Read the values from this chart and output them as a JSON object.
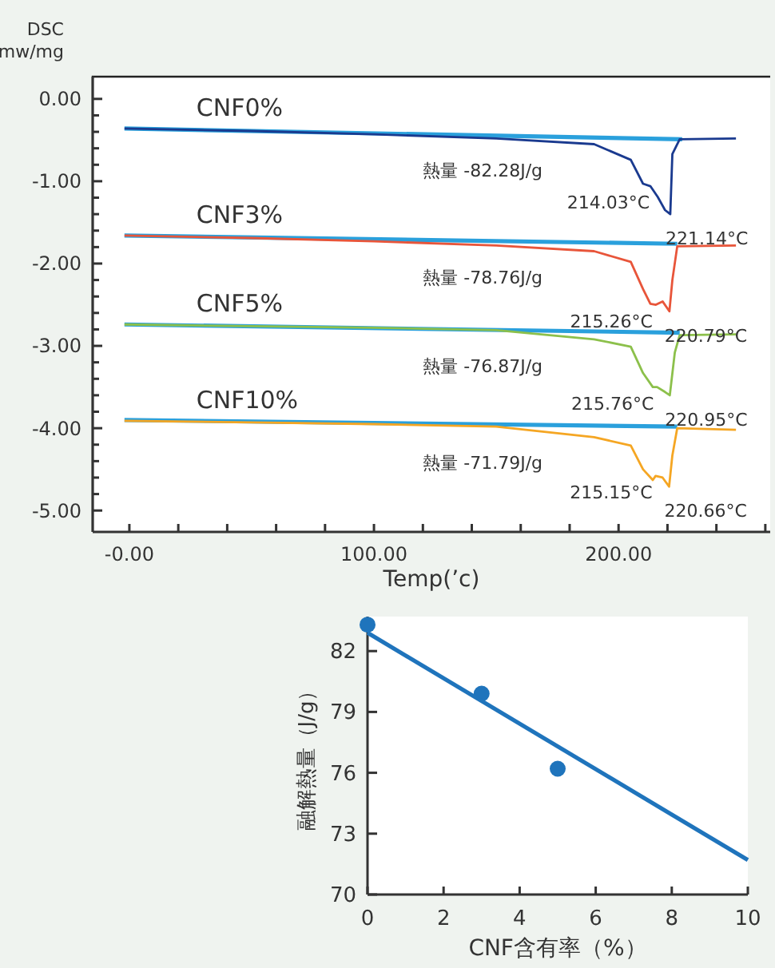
{
  "chart_data": [
    {
      "type": "line",
      "ylabel": "DSC mw/mg",
      "xlabel": "Temp(’c)",
      "xlim": [
        -15,
        262
      ],
      "ylim": [
        -5.26,
        0.27
      ],
      "xticks": [
        {
          "value": 0,
          "label": "-0.00"
        },
        {
          "value": 20,
          "label": null
        },
        {
          "value": 40,
          "label": null
        },
        {
          "value": 60,
          "label": null
        },
        {
          "value": 80,
          "label": null
        },
        {
          "value": 100,
          "label": "100.00"
        },
        {
          "value": 120,
          "label": null
        },
        {
          "value": 140,
          "label": null
        },
        {
          "value": 160,
          "label": null
        },
        {
          "value": 180,
          "label": null
        },
        {
          "value": 200,
          "label": "200.00"
        },
        {
          "value": 220,
          "label": null
        },
        {
          "value": 240,
          "label": null
        },
        {
          "value": 260,
          "label": null
        }
      ],
      "yticks": [
        {
          "value": 0,
          "label": "0.00"
        },
        {
          "value": -0.2,
          "label": null
        },
        {
          "value": -0.4,
          "label": null
        },
        {
          "value": -0.6,
          "label": null
        },
        {
          "value": -0.8,
          "label": null
        },
        {
          "value": -1,
          "label": "-1.00"
        },
        {
          "value": -1.2,
          "label": null
        },
        {
          "value": -1.4,
          "label": null
        },
        {
          "value": -1.6,
          "label": null
        },
        {
          "value": -1.8,
          "label": null
        },
        {
          "value": -2,
          "label": "-2.00"
        },
        {
          "value": -2.2,
          "label": null
        },
        {
          "value": -2.4,
          "label": null
        },
        {
          "value": -2.6,
          "label": null
        },
        {
          "value": -2.8,
          "label": null
        },
        {
          "value": -3,
          "label": "-3.00"
        },
        {
          "value": -3.2,
          "label": null
        },
        {
          "value": -3.4,
          "label": null
        },
        {
          "value": -3.6,
          "label": null
        },
        {
          "value": -3.8,
          "label": null
        },
        {
          "value": -4,
          "label": "-4.00"
        },
        {
          "value": -4.2,
          "label": null
        },
        {
          "value": -4.4,
          "label": null
        },
        {
          "value": -4.6,
          "label": null
        },
        {
          "value": -4.8,
          "label": null
        },
        {
          "value": -5,
          "label": "-5.00"
        }
      ],
      "grid": false,
      "legend": false,
      "marker": "none",
      "series": [
        {
          "color": "#2aa0dc",
          "x": [
            -2,
            226
          ],
          "values": [
            -0.36,
            -0.49
          ]
        },
        {
          "name": "CNF0%",
          "color": "#1a3a8f",
          "x": [
            -2,
            50,
            100,
            150,
            190,
            205,
            210,
            213,
            216,
            219,
            221.14,
            222,
            225,
            248
          ],
          "values": [
            -0.36,
            -0.39,
            -0.43,
            -0.48,
            -0.55,
            -0.74,
            -1.03,
            -1.06,
            -1.19,
            -1.35,
            -1.4,
            -0.67,
            -0.49,
            -0.48
          ]
        },
        {
          "color": "#2aa0dc",
          "x": [
            -2,
            224
          ],
          "values": [
            -1.66,
            -1.76
          ]
        },
        {
          "name": "CNF3%",
          "color": "#e8553a",
          "x": [
            -2,
            50,
            100,
            150,
            190,
            205,
            210,
            213,
            215.26,
            218,
            220.79,
            222,
            224,
            248
          ],
          "values": [
            -1.66,
            -1.69,
            -1.73,
            -1.78,
            -1.85,
            -1.98,
            -2.31,
            -2.49,
            -2.5,
            -2.46,
            -2.58,
            -2.2,
            -1.79,
            -1.78
          ]
        },
        {
          "color": "#2aa0dc",
          "x": [
            -2,
            225
          ],
          "values": [
            -2.74,
            -2.84
          ]
        },
        {
          "name": "CNF5%",
          "color": "#8cc04b",
          "x": [
            -2,
            50,
            100,
            150,
            190,
            205,
            210,
            214,
            215.76,
            219,
            220.95,
            223,
            225,
            248
          ],
          "values": [
            -2.74,
            -2.76,
            -2.78,
            -2.81,
            -2.92,
            -3.01,
            -3.33,
            -3.5,
            -3.5,
            -3.56,
            -3.6,
            -3.08,
            -2.87,
            -2.86
          ]
        },
        {
          "color": "#2aa0dc",
          "x": [
            -2,
            224
          ],
          "values": [
            -3.9,
            -3.98
          ]
        },
        {
          "name": "CNF10%",
          "color": "#f5a623",
          "x": [
            -2,
            50,
            100,
            150,
            190,
            205,
            210,
            214,
            215.15,
            218,
            220.66,
            222,
            224,
            248
          ],
          "values": [
            -3.91,
            -3.93,
            -3.95,
            -3.98,
            -4.11,
            -4.21,
            -4.5,
            -4.63,
            -4.58,
            -4.6,
            -4.71,
            -4.33,
            -4.0,
            -4.02
          ]
        }
      ],
      "annotations": [
        "熱量 -82.28J/g",
        {
          "text": "214.03°C",
          "x": 214.03,
          "y": -1.06
        },
        {
          "text": "221.14°C",
          "x": 221.14,
          "y": -1.4
        },
        "熱量 -78.76J/g",
        {
          "text": "215.26°C",
          "x": 215.26,
          "y": -2.5
        },
        {
          "text": "220.79°C",
          "x": 220.79,
          "y": -2.58
        },
        "熱量 -76.87J/g",
        {
          "text": "215.76°C",
          "x": 215.76,
          "y": -3.5
        },
        {
          "text": "220.95°C",
          "x": 220.95,
          "y": -3.6
        },
        "熱量 -71.79J/g",
        {
          "text": "215.15°C",
          "x": 215.15,
          "y": -4.58
        },
        {
          "text": "220.66°C",
          "x": 220.66,
          "y": -4.71
        }
      ]
    },
    {
      "type": "scatter",
      "xlabel": "CNF含有率（%）",
      "ylabel": "融解熱量（J/g）",
      "xlim": [
        0,
        10
      ],
      "ylim": [
        70,
        83.7
      ],
      "xticks": [
        0,
        2,
        4,
        6,
        8,
        10
      ],
      "yticks": [
        70,
        73,
        76,
        79,
        82
      ],
      "grid": false,
      "legend": false,
      "marker": "circle",
      "series": [
        {
          "color": "#1f74bc",
          "x": [
            0,
            3,
            5
          ],
          "values": [
            83.3,
            79.9,
            76.2
          ]
        },
        {
          "type": "line",
          "marker": "none",
          "color": "#1f74bc",
          "x": [
            0,
            10
          ],
          "values": [
            82.9,
            71.7
          ]
        }
      ]
    }
  ]
}
